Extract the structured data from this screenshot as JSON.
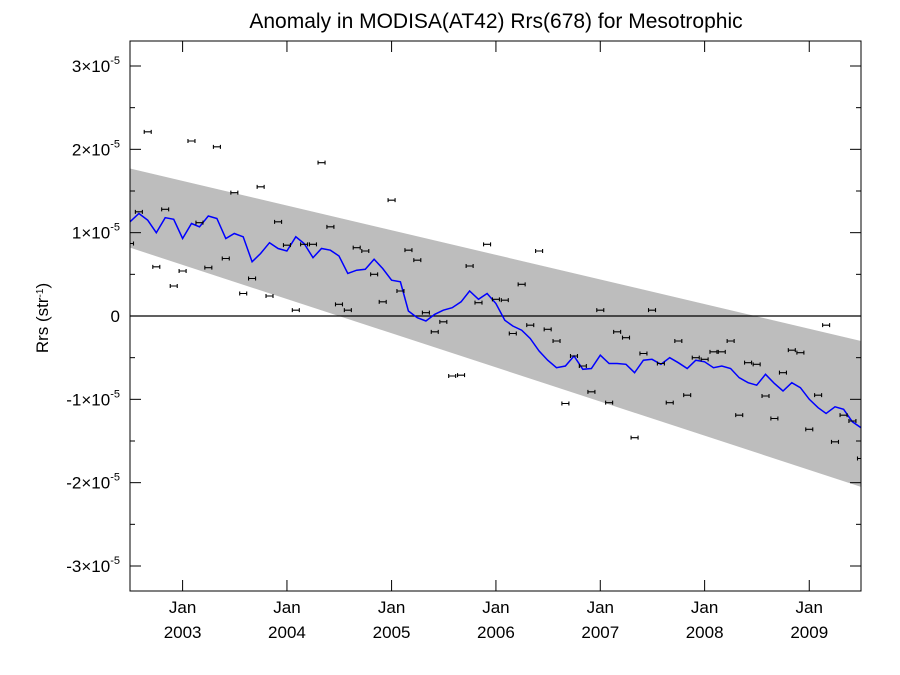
{
  "chart_data": {
    "type": "line",
    "title": "Anomaly in MODISA(AT42) Rrs(678) for Mesotrophic",
    "xlabel": "",
    "ylabel": "Rrs (str",
    "ylabel_sup": "-1",
    "ylabel_close": ")",
    "xlim": [
      "2002-07-01",
      "2009-07-01"
    ],
    "ylim": [
      -3.3e-05,
      3.3e-05
    ],
    "x_ticks": [
      {
        "date": "2003-01-01",
        "month": "Jan",
        "year": "2003"
      },
      {
        "date": "2004-01-01",
        "month": "Jan",
        "year": "2004"
      },
      {
        "date": "2005-01-01",
        "month": "Jan",
        "year": "2005"
      },
      {
        "date": "2006-01-01",
        "month": "Jan",
        "year": "2006"
      },
      {
        "date": "2007-01-01",
        "month": "Jan",
        "year": "2007"
      },
      {
        "date": "2008-01-01",
        "month": "Jan",
        "year": "2008"
      },
      {
        "date": "2009-01-01",
        "month": "Jan",
        "year": "2009"
      }
    ],
    "y_ticks": [
      {
        "value": 3e-05,
        "mantissa": "3",
        "times": "×10",
        "exp": "-5"
      },
      {
        "value": 2e-05,
        "mantissa": "2",
        "times": "×10",
        "exp": "-5"
      },
      {
        "value": 1e-05,
        "mantissa": "1",
        "times": "×10",
        "exp": "-5"
      },
      {
        "value": 0,
        "mantissa": "0",
        "times": "",
        "exp": ""
      },
      {
        "value": -1e-05,
        "mantissa": "-1",
        "times": "×10",
        "exp": "-5"
      },
      {
        "value": -2e-05,
        "mantissa": "-2",
        "times": "×10",
        "exp": "-5"
      },
      {
        "value": -3e-05,
        "mantissa": "-3",
        "times": "×10",
        "exp": "-5"
      }
    ],
    "trend_band": {
      "start": "2002-07-01",
      "end": "2009-07-01",
      "upper": [
        1.77e-05,
        -3e-06
      ],
      "lower": [
        8.2e-06,
        -2.05e-05
      ]
    },
    "zero_line": 0,
    "monthly_anomaly": {
      "x": [
        "2002-07-01",
        "2002-08-01",
        "2002-09-01",
        "2002-10-01",
        "2002-11-01",
        "2002-12-01",
        "2003-01-01",
        "2003-02-01",
        "2003-03-01",
        "2003-04-01",
        "2003-05-01",
        "2003-06-01",
        "2003-07-01",
        "2003-08-01",
        "2003-09-01",
        "2003-10-01",
        "2003-11-01",
        "2003-12-01",
        "2004-01-01",
        "2004-02-01",
        "2004-03-01",
        "2004-04-01",
        "2004-05-01",
        "2004-06-01",
        "2004-07-01",
        "2004-08-01",
        "2004-09-01",
        "2004-10-01",
        "2004-11-01",
        "2004-12-01",
        "2005-01-01",
        "2005-02-01",
        "2005-03-01",
        "2005-04-01",
        "2005-05-01",
        "2005-06-01",
        "2005-07-01",
        "2005-08-01",
        "2005-09-01",
        "2005-10-01",
        "2005-11-01",
        "2005-12-01",
        "2006-01-01",
        "2006-02-01",
        "2006-03-01",
        "2006-04-01",
        "2006-05-01",
        "2006-06-01",
        "2006-07-01",
        "2006-08-01",
        "2006-09-01",
        "2006-10-01",
        "2006-11-01",
        "2006-12-01",
        "2007-01-01",
        "2007-02-01",
        "2007-03-01",
        "2007-04-01",
        "2007-05-01",
        "2007-06-01",
        "2007-07-01",
        "2007-08-01",
        "2007-09-01",
        "2007-10-01",
        "2007-11-01",
        "2007-12-01",
        "2008-01-01",
        "2008-02-01",
        "2008-03-01",
        "2008-04-01",
        "2008-05-01",
        "2008-06-01",
        "2008-07-01",
        "2008-08-01",
        "2008-09-01",
        "2008-10-01",
        "2008-11-01",
        "2008-12-01",
        "2009-01-01",
        "2009-02-01",
        "2009-03-01",
        "2009-04-01",
        "2009-05-01",
        "2009-06-01",
        "2009-07-01"
      ],
      "y": [
        8.7e-06,
        1.25e-05,
        2.21e-05,
        5.9e-06,
        1.28e-05,
        3.6e-06,
        5.4e-06,
        2.1e-05,
        1.12e-05,
        5.8e-06,
        2.03e-05,
        6.9e-06,
        1.48e-05,
        2.7e-06,
        4.5e-06,
        1.55e-05,
        2.4e-06,
        1.13e-05,
        8.5e-06,
        7e-07,
        8.6e-06,
        8.6e-06,
        1.84e-05,
        1.07e-05,
        1.4e-06,
        7e-07,
        8.2e-06,
        7.8e-06,
        5e-06,
        1.7e-06,
        1.39e-05,
        3e-06,
        7.9e-06,
        6.7e-06,
        4e-07,
        -1.9e-06,
        -7e-07,
        -7.2e-06,
        -7.1e-06,
        6e-06,
        1.6e-06,
        8.6e-06,
        2e-06,
        1.9e-06,
        -2.1e-06,
        3.8e-06,
        -1.1e-06,
        7.8e-06,
        -1.6e-06,
        -3e-06,
        -1.05e-05,
        -4.8e-06,
        -6e-06,
        -9.1e-06,
        7e-07,
        -1.04e-05,
        -1.9e-06,
        -2.6e-06,
        -1.46e-05,
        -4.5e-06,
        7e-07,
        -5.7e-06,
        -1.04e-05,
        -3e-06,
        -9.5e-06,
        -5e-06,
        -5.2e-06,
        -4.3e-06,
        -4.3e-06,
        -3e-06,
        -1.19e-05,
        -5.6e-06,
        -5.8e-06,
        -9.6e-06,
        -1.23e-05,
        -6.8e-06,
        -4.1e-06,
        -4.4e-06,
        -1.36e-05,
        -9.5e-06,
        -1.1e-06,
        -1.51e-05,
        -1.19e-05,
        -1.26e-05,
        -1.71e-05
      ]
    },
    "running_mean": {
      "x": [
        "2002-07-01",
        "2002-08-01",
        "2002-09-01",
        "2002-10-01",
        "2002-11-01",
        "2002-12-01",
        "2003-01-01",
        "2003-02-01",
        "2003-03-01",
        "2003-04-01",
        "2003-05-01",
        "2003-06-01",
        "2003-07-01",
        "2003-08-01",
        "2003-09-01",
        "2003-10-01",
        "2003-11-01",
        "2003-12-01",
        "2004-01-01",
        "2004-02-01",
        "2004-03-01",
        "2004-04-01",
        "2004-05-01",
        "2004-06-01",
        "2004-07-01",
        "2004-08-01",
        "2004-09-01",
        "2004-10-01",
        "2004-11-01",
        "2004-12-01",
        "2005-01-01",
        "2005-02-01",
        "2005-03-01",
        "2005-04-01",
        "2005-05-01",
        "2005-06-01",
        "2005-07-01",
        "2005-08-01",
        "2005-09-01",
        "2005-10-01",
        "2005-11-01",
        "2005-12-01",
        "2006-01-01",
        "2006-02-01",
        "2006-03-01",
        "2006-04-01",
        "2006-05-01",
        "2006-06-01",
        "2006-07-01",
        "2006-08-01",
        "2006-09-01",
        "2006-10-01",
        "2006-11-01",
        "2006-12-01",
        "2007-01-01",
        "2007-02-01",
        "2007-03-01",
        "2007-04-01",
        "2007-05-01",
        "2007-06-01",
        "2007-07-01",
        "2007-08-01",
        "2007-09-01",
        "2007-10-01",
        "2007-11-01",
        "2007-12-01",
        "2008-01-01",
        "2008-02-01",
        "2008-03-01",
        "2008-04-01",
        "2008-05-01",
        "2008-06-01",
        "2008-07-01",
        "2008-08-01",
        "2008-09-01",
        "2008-10-01",
        "2008-11-01",
        "2008-12-01",
        "2009-01-01",
        "2009-02-01",
        "2009-03-01",
        "2009-04-01",
        "2009-05-01",
        "2009-06-01",
        "2009-07-01"
      ],
      "y": [
        1.13e-05,
        1.23e-05,
        1.15e-05,
        1e-05,
        1.18e-05,
        1.16e-05,
        9.3e-06,
        1.11e-05,
        1.07e-05,
        1.2e-05,
        1.17e-05,
        9.3e-06,
        9.9e-06,
        9.5e-06,
        6.5e-06,
        7.5e-06,
        8.8e-06,
        8.1e-06,
        7.8e-06,
        9.5e-06,
        8.7e-06,
        7e-06,
        8.1e-06,
        7.9e-06,
        7.2e-06,
        5.1e-06,
        5.5e-06,
        5.6e-06,
        6.8e-06,
        5.7e-06,
        4.3e-06,
        4.1e-06,
        6e-07,
        -2e-07,
        -6e-07,
        2e-07,
        7e-07,
        1e-06,
        1.7e-06,
        3e-06,
        2e-06,
        2.7e-06,
        1.5e-06,
        -5e-07,
        -1.2e-06,
        -1.7e-06,
        -2.7e-06,
        -4.2e-06,
        -5.3e-06,
        -6.2e-06,
        -6e-06,
        -4.8e-06,
        -6.4e-06,
        -6.3e-06,
        -4.7e-06,
        -5.7e-06,
        -5.7e-06,
        -5.8e-06,
        -6.8e-06,
        -5.3e-06,
        -5.2e-06,
        -5.8e-06,
        -5e-06,
        -5.6e-06,
        -6.3e-06,
        -5.3e-06,
        -5.5e-06,
        -6.2e-06,
        -6e-06,
        -6.3e-06,
        -7.4e-06,
        -8e-06,
        -8.3e-06,
        -7e-06,
        -8.1e-06,
        -9e-06,
        -8e-06,
        -8.6e-06,
        -1e-05,
        -1.1e-05,
        -1.17e-05,
        -1.09e-05,
        -1.12e-05,
        -1.27e-05,
        -1.34e-05
      ]
    },
    "colors": {
      "band": "#bdbdbd",
      "running_mean": "#0000ff",
      "points": "#000000",
      "axes": "#000000"
    },
    "grid": false
  }
}
